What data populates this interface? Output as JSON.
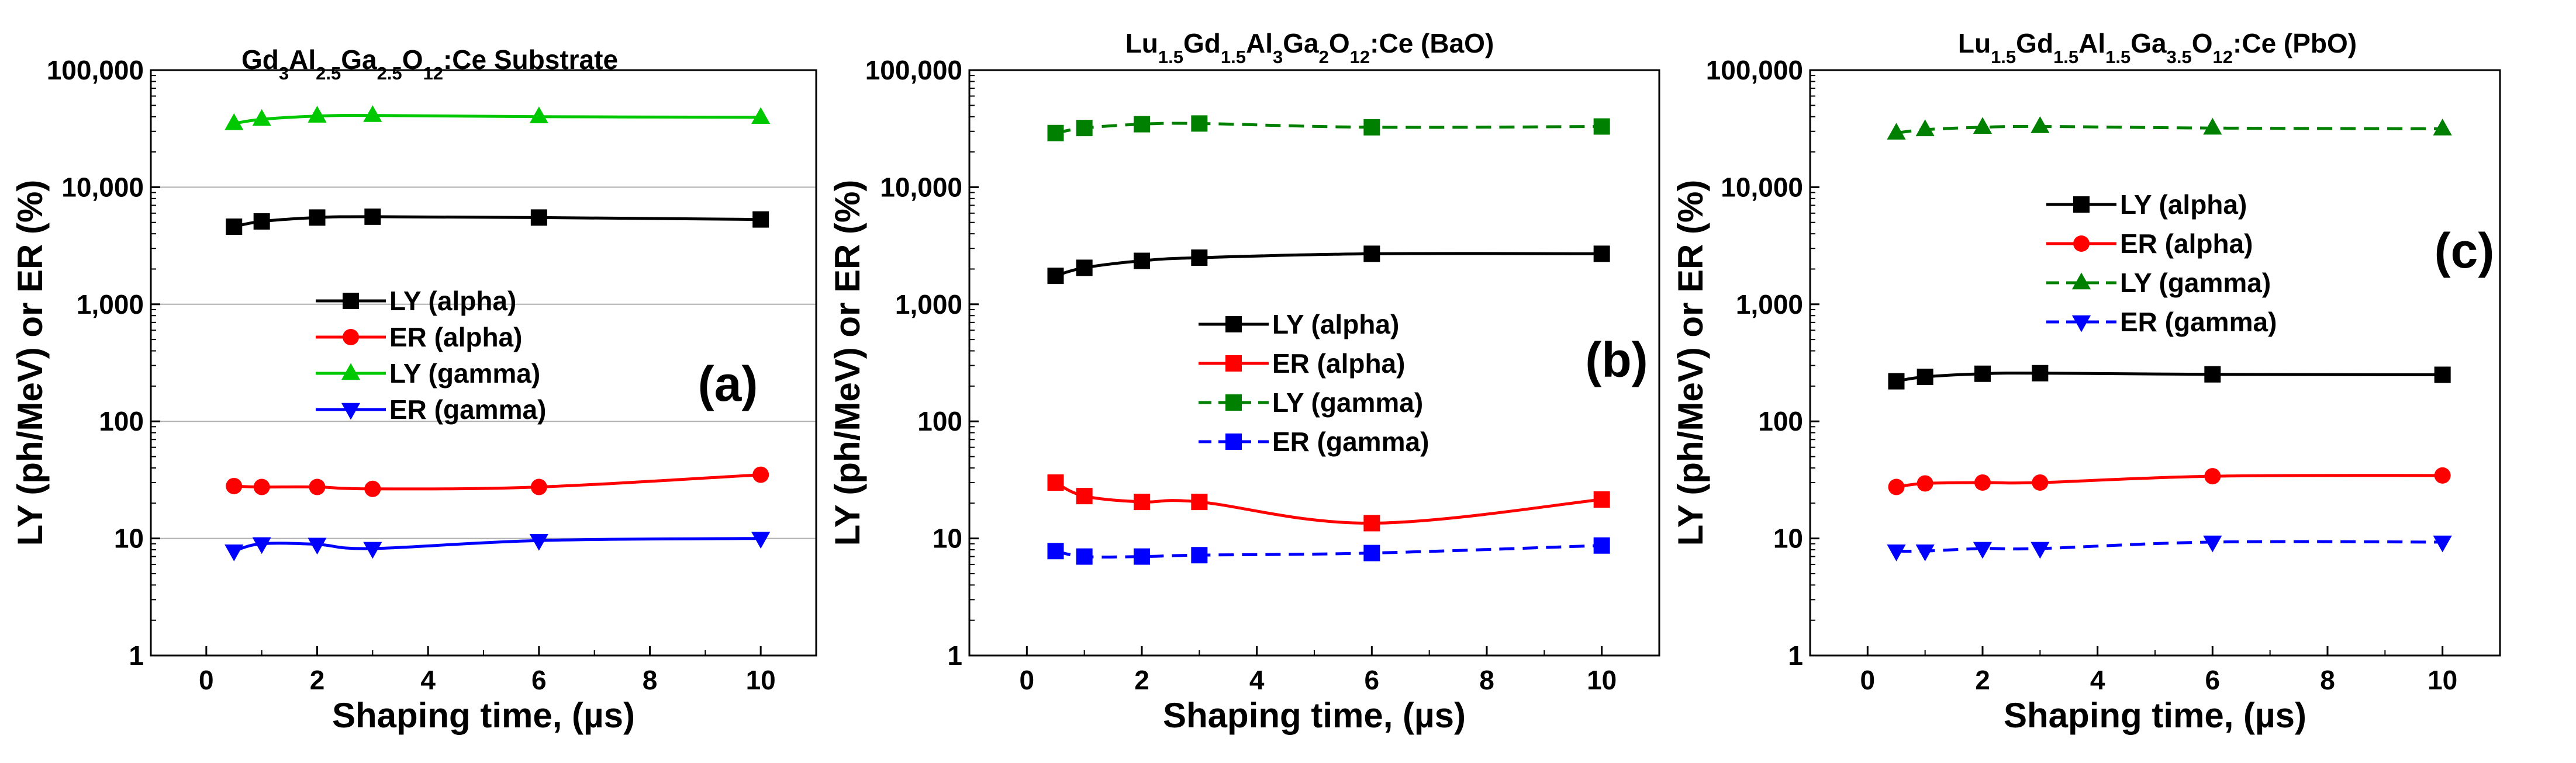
{
  "chart_data": [
    {
      "type": "line",
      "title": {
        "pre": "Gd",
        "s1": "3",
        "m1": "Al",
        "s2": "2.5",
        "m2": "Ga",
        "s3": "2.5",
        "m3": "O",
        "s4": "12",
        "post": ":Ce Substrate"
      },
      "xlabel": "Shaping time, (µs)",
      "ylabel": "LY (ph/MeV) or ER (%)",
      "panel_label": "(a)",
      "xlim": [
        -1,
        11
      ],
      "ylim": [
        1,
        100000
      ],
      "yscale": "log",
      "xticks": [
        "0",
        "2",
        "4",
        "6",
        "8",
        "10"
      ],
      "yticks": [
        "1",
        "10",
        "100",
        "1,000",
        "10,000",
        "100,000"
      ],
      "grid": true,
      "x": [
        0.5,
        1,
        2,
        3,
        6,
        10
      ],
      "series": [
        {
          "name": "LY (alpha)",
          "color": "#000000",
          "marker": "square",
          "dashed": false,
          "values": [
            4600,
            5100,
            5500,
            5600,
            5500,
            5300
          ]
        },
        {
          "name": "ER (alpha)",
          "color": "#ff0000",
          "marker": "circle",
          "dashed": false,
          "values": [
            28,
            27.5,
            27.5,
            26.5,
            27.5,
            35
          ]
        },
        {
          "name": "LY (gamma)",
          "color": "#00c800",
          "marker": "triangle-up",
          "dashed": false,
          "values": [
            35000,
            38000,
            40500,
            41000,
            40000,
            39500
          ]
        },
        {
          "name": "ER (gamma)",
          "color": "#0000ff",
          "marker": "triangle-down",
          "dashed": false,
          "values": [
            7.8,
            9,
            8.9,
            8.2,
            9.6,
            10
          ]
        }
      ]
    },
    {
      "type": "line",
      "title": {
        "pre": "Lu",
        "s1": "1.5",
        "m1": "Gd",
        "s2": "1.5",
        "m2": "Al",
        "s3": "3",
        "m3": "Ga",
        "s4": "2",
        "m4": "O",
        "s5": "12",
        "post": ":Ce (BaO)"
      },
      "xlabel": "Shaping time, (µs)",
      "ylabel": "LY (ph/MeV) or ER (%)",
      "panel_label": "(b)",
      "xlim": [
        -1,
        11
      ],
      "ylim": [
        1,
        100000
      ],
      "yscale": "log",
      "xticks": [
        "0",
        "2",
        "4",
        "6",
        "8",
        "10"
      ],
      "yticks": [
        "1",
        "10",
        "100",
        "1,000",
        "10,000",
        "100,000"
      ],
      "grid": false,
      "x": [
        0.5,
        1,
        2,
        3,
        6,
        10
      ],
      "series": [
        {
          "name": "LY (alpha)",
          "color": "#000000",
          "marker": "square",
          "dashed": false,
          "values": [
            1750,
            2050,
            2350,
            2500,
            2700,
            2700
          ]
        },
        {
          "name": "ER (alpha)",
          "color": "#ff0000",
          "marker": "square",
          "dashed": false,
          "values": [
            30,
            23,
            20.5,
            20.5,
            13.5,
            21.5
          ]
        },
        {
          "name": "LY (gamma)",
          "color": "#008000",
          "marker": "square",
          "dashed": true,
          "values": [
            29000,
            32000,
            34500,
            35000,
            32500,
            33000
          ]
        },
        {
          "name": "ER (gamma)",
          "color": "#0000ff",
          "marker": "square",
          "dashed": true,
          "values": [
            7.8,
            7,
            7,
            7.2,
            7.5,
            8.7
          ]
        }
      ]
    },
    {
      "type": "line",
      "title": {
        "pre": "Lu",
        "s1": "1.5",
        "m1": "Gd",
        "s2": "1.5",
        "m2": "Al",
        "s3": "1.5",
        "m3": "Ga",
        "s4": "3.5",
        "m4": "O",
        "s5": "12",
        "post": ":Ce (PbO)"
      },
      "xlabel": "Shaping time, (µs)",
      "ylabel": "LY (ph/MeV) or ER (%)",
      "panel_label": "(c)",
      "xlim": [
        -1,
        11
      ],
      "ylim": [
        1,
        100000
      ],
      "yscale": "log",
      "xticks": [
        "0",
        "2",
        "4",
        "6",
        "8",
        "10"
      ],
      "yticks": [
        "1",
        "10",
        "100",
        "1,000",
        "10,000",
        "100,000"
      ],
      "grid": false,
      "x": [
        0.5,
        1,
        2,
        3,
        6,
        10
      ],
      "series": [
        {
          "name": "LY (alpha)",
          "color": "#000000",
          "marker": "square",
          "dashed": false,
          "values": [
            220,
            240,
            255,
            258,
            252,
            250
          ]
        },
        {
          "name": "ER (alpha)",
          "color": "#ff0000",
          "marker": "circle",
          "dashed": false,
          "values": [
            27.5,
            29.5,
            30,
            30,
            34,
            34.5
          ]
        },
        {
          "name": "LY (gamma)",
          "color": "#008000",
          "marker": "triangle-up",
          "dashed": true,
          "values": [
            29000,
            31000,
            32500,
            33000,
            32000,
            31500
          ]
        },
        {
          "name": "ER (gamma)",
          "color": "#0000ff",
          "marker": "triangle-down",
          "dashed": true,
          "values": [
            7.8,
            7.8,
            8.2,
            8.2,
            9.3,
            9.3
          ]
        }
      ]
    }
  ]
}
